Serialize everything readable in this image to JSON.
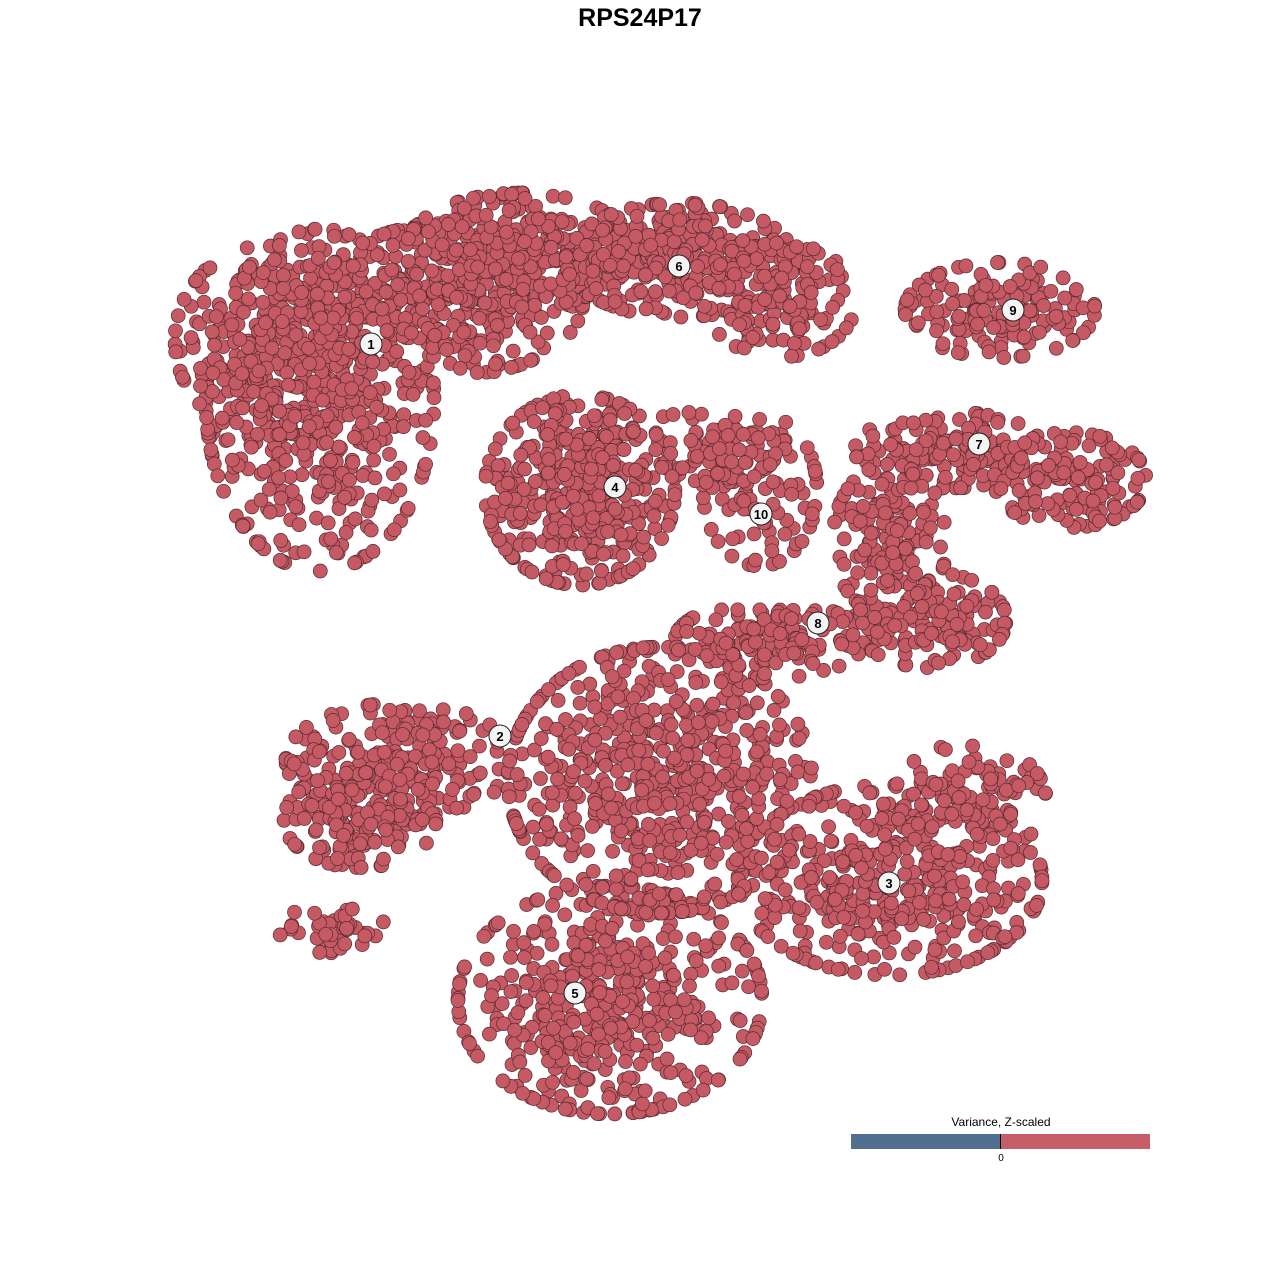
{
  "chart_data": {
    "type": "scatter",
    "title": "RPS24P17",
    "xlabel": "",
    "ylabel": "",
    "xlim": [
      -64,
      64
    ],
    "ylim": [
      -64,
      64
    ],
    "grid": false,
    "point_color": "#c55a65",
    "point_stroke": "#5a2a2e",
    "legend": {
      "title": "Variance, Z-scaled",
      "ticks": [
        "0"
      ],
      "low_color": "#506f91",
      "high_color": "#c55e69",
      "placement": "bottom-right"
    },
    "clusters": [
      {
        "id": "1",
        "label_pos": [
          -26.9,
          29.6
        ],
        "blobs": [
          [
            -32,
            24,
            6,
            9,
            520
          ],
          [
            -37,
            30,
            5,
            5,
            200
          ],
          [
            -19,
            34,
            7,
            4,
            300
          ]
        ]
      },
      {
        "id": "2",
        "label_pos": [
          -14.0,
          -9.6
        ],
        "blobs": [
          [
            -24,
            -12,
            6,
            3,
            220
          ],
          [
            -28,
            -18,
            4,
            2.5,
            150
          ],
          [
            -31,
            -29,
            3,
            1.2,
            40
          ]
        ]
      },
      {
        "id": "3",
        "label_pos": [
          24.9,
          -24.3
        ],
        "blobs": [
          [
            25,
            -24,
            8,
            5,
            420
          ],
          [
            33,
            -16,
            4,
            3,
            120
          ]
        ]
      },
      {
        "id": "4",
        "label_pos": [
          -2.5,
          15.3
        ],
        "blobs": [
          [
            -6,
            15,
            5,
            5,
            420
          ]
        ]
      },
      {
        "id": "5",
        "label_pos": [
          -6.5,
          -35.3
        ],
        "blobs": [
          [
            -3,
            -36,
            8,
            6,
            500
          ],
          [
            2,
            -14,
            8,
            7,
            650
          ]
        ]
      },
      {
        "id": "6",
        "label_pos": [
          3.9,
          37.4
        ],
        "blobs": [
          [
            -12,
            39,
            6,
            3,
            300
          ],
          [
            4,
            38,
            6,
            3,
            300
          ],
          [
            14,
            34,
            4,
            3,
            120
          ]
        ]
      },
      {
        "id": "7",
        "label_pos": [
          33.9,
          19.6
        ],
        "blobs": [
          [
            31,
            19,
            5,
            2,
            140
          ],
          [
            43,
            16,
            4,
            2.5,
            150
          ]
        ]
      },
      {
        "id": "8",
        "label_pos": [
          17.8,
          1.7
        ],
        "blobs": [
          [
            25,
            10,
            3,
            4,
            130
          ],
          [
            29,
            2,
            4,
            2.5,
            150
          ],
          [
            13,
            0,
            5,
            2,
            140
          ]
        ]
      },
      {
        "id": "9",
        "label_pos": [
          37.3,
          33.0
        ],
        "blobs": [
          [
            36,
            33,
            5,
            2.5,
            160
          ]
        ]
      },
      {
        "id": "10",
        "label_pos": [
          12.1,
          12.6
        ],
        "blobs": [
          [
            12,
            15,
            3,
            4,
            90
          ],
          [
            6,
            19,
            4,
            2,
            90
          ]
        ]
      }
    ]
  }
}
